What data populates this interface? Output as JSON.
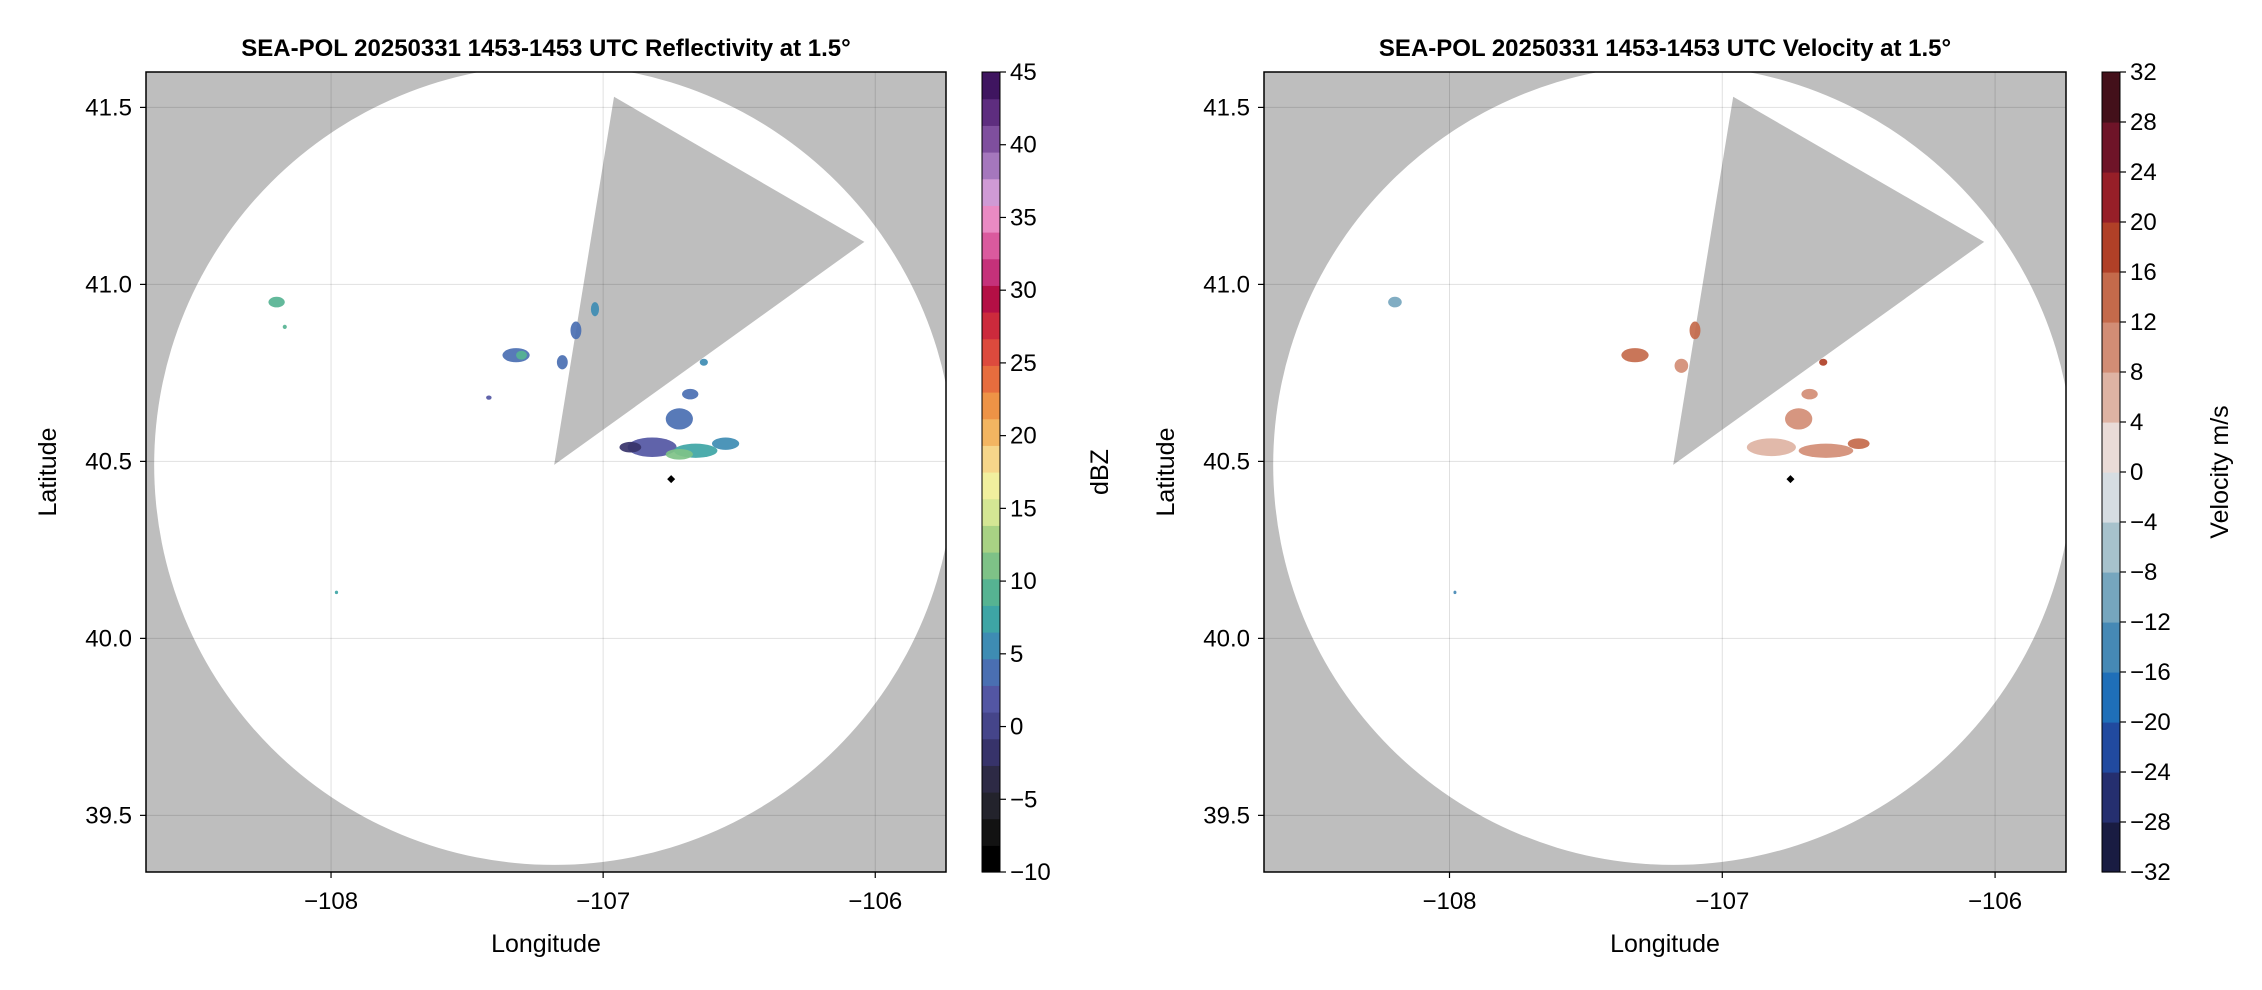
{
  "chart_data": [
    {
      "type": "heatmap",
      "title": "SEA-POL 20250331 1453-1453 UTC Reflectivity at 1.5°",
      "xlabel": "Longitude",
      "ylabel": "Latitude",
      "xlim": [
        -108.68,
        -105.74
      ],
      "ylim": [
        39.34,
        41.6
      ],
      "xticks": [
        -108,
        -107,
        -106
      ],
      "xtick_labels": [
        "−108",
        "−107",
        "−106"
      ],
      "yticks": [
        39.5,
        40.0,
        40.5,
        41.0,
        41.5
      ],
      "ytick_labels": [
        "39.5",
        "40.0",
        "40.5",
        "41.0",
        "41.5"
      ],
      "grid": true,
      "background_color": "#bebebe",
      "coverage_color": "#ffffff",
      "radar_site": {
        "lon": -106.75,
        "lat": 40.45
      },
      "coverage_center": {
        "lon": -107.18,
        "lat": 40.49
      },
      "coverage_radius_lat": 1.13,
      "blocked_sector_vertices": [
        [
          -107.18,
          40.49
        ],
        [
          -106.96,
          41.53
        ],
        [
          -106.04,
          41.12
        ]
      ],
      "colorbar": {
        "label": "dBZ",
        "min": -10,
        "max": 45,
        "step": 2.5,
        "ticks": [
          -10,
          -5,
          0,
          5,
          10,
          15,
          20,
          25,
          30,
          35,
          40,
          45
        ],
        "tick_labels": [
          "−10",
          "−5",
          "0",
          "5",
          "10",
          "15",
          "20",
          "25",
          "30",
          "35",
          "40",
          "45"
        ],
        "colors": [
          "#000000",
          "#121212",
          "#23232c",
          "#2d2a45",
          "#37336a",
          "#45458a",
          "#5356a3",
          "#4a6fb2",
          "#3e8cb3",
          "#3ea5a5",
          "#56b392",
          "#7ec287",
          "#a8d284",
          "#d4e694",
          "#f1ef9e",
          "#f6d68a",
          "#f3b561",
          "#ee9346",
          "#e76d3e",
          "#dd4a3d",
          "#cc2a3c",
          "#b40f45",
          "#c5317a",
          "#da5a9e",
          "#e98ac3",
          "#cf9ad5",
          "#a577bd",
          "#7f4f9e",
          "#5e2d7f",
          "#3f1560"
        ]
      },
      "echoes": [
        {
          "lon": -106.82,
          "lat": 40.54,
          "dlon": 0.18,
          "dlat": 0.055,
          "value": 6
        },
        {
          "lon": -106.66,
          "lat": 40.53,
          "dlon": 0.16,
          "dlat": 0.04,
          "value": 14
        },
        {
          "lon": -106.72,
          "lat": 40.52,
          "dlon": 0.1,
          "dlat": 0.03,
          "value": 18
        },
        {
          "lon": -106.55,
          "lat": 40.55,
          "dlon": 0.1,
          "dlat": 0.035,
          "value": 11
        },
        {
          "lon": -106.9,
          "lat": 40.54,
          "dlon": 0.08,
          "dlat": 0.03,
          "value": 2
        },
        {
          "lon": -106.72,
          "lat": 40.62,
          "dlon": 0.1,
          "dlat": 0.06,
          "value": 8
        },
        {
          "lon": -106.68,
          "lat": 40.69,
          "dlon": 0.06,
          "dlat": 0.03,
          "value": 9
        },
        {
          "lon": -106.63,
          "lat": 40.78,
          "dlon": 0.03,
          "dlat": 0.02,
          "value": 12
        },
        {
          "lon": -107.32,
          "lat": 40.8,
          "dlon": 0.1,
          "dlat": 0.04,
          "value": 9
        },
        {
          "lon": -107.3,
          "lat": 40.8,
          "dlon": 0.04,
          "dlat": 0.025,
          "value": 16
        },
        {
          "lon": -107.1,
          "lat": 40.87,
          "dlon": 0.04,
          "dlat": 0.05,
          "value": 9
        },
        {
          "lon": -107.03,
          "lat": 40.93,
          "dlon": 0.03,
          "dlat": 0.04,
          "value": 10
        },
        {
          "lon": -107.15,
          "lat": 40.78,
          "dlon": 0.04,
          "dlat": 0.04,
          "value": 8
        },
        {
          "lon": -108.2,
          "lat": 40.95,
          "dlon": 0.06,
          "dlat": 0.03,
          "value": 15
        },
        {
          "lon": -108.17,
          "lat": 40.88,
          "dlon": 0.015,
          "dlat": 0.012,
          "value": 15
        },
        {
          "lon": -107.42,
          "lat": 40.68,
          "dlon": 0.02,
          "dlat": 0.012,
          "value": 5
        },
        {
          "lon": -107.98,
          "lat": 40.13,
          "dlon": 0.012,
          "dlat": 0.01,
          "value": 13
        }
      ]
    },
    {
      "type": "heatmap",
      "title": "SEA-POL 20250331 1453-1453 UTC Velocity at 1.5°",
      "xlabel": "Longitude",
      "ylabel": "Latitude",
      "xlim": [
        -108.68,
        -105.74
      ],
      "ylim": [
        39.34,
        41.6
      ],
      "xticks": [
        -108,
        -107,
        -106
      ],
      "xtick_labels": [
        "−108",
        "−107",
        "−106"
      ],
      "yticks": [
        39.5,
        40.0,
        40.5,
        41.0,
        41.5
      ],
      "ytick_labels": [
        "39.5",
        "40.0",
        "40.5",
        "41.0",
        "41.5"
      ],
      "grid": true,
      "background_color": "#bebebe",
      "coverage_color": "#ffffff",
      "radar_site": {
        "lon": -106.75,
        "lat": 40.45
      },
      "coverage_center": {
        "lon": -107.18,
        "lat": 40.49
      },
      "coverage_radius_lat": 1.13,
      "blocked_sector_vertices": [
        [
          -107.18,
          40.49
        ],
        [
          -106.96,
          41.53
        ],
        [
          -106.04,
          41.12
        ]
      ],
      "colorbar": {
        "label": "Velocity m/s",
        "min": -32,
        "max": 32,
        "step": 4,
        "ticks": [
          -32,
          -28,
          -24,
          -20,
          -16,
          -12,
          -8,
          -4,
          0,
          4,
          8,
          12,
          16,
          20,
          24,
          28,
          32
        ],
        "tick_labels": [
          "−32",
          "−28",
          "−24",
          "−20",
          "−16",
          "−12",
          "−8",
          "−4",
          "0",
          "4",
          "8",
          "12",
          "16",
          "20",
          "24",
          "28",
          "32"
        ],
        "colors": [
          "#191c42",
          "#252f6f",
          "#214a9f",
          "#1f6fb8",
          "#4689b5",
          "#76a6be",
          "#a7c2cc",
          "#d6dde2",
          "#e9dbd7",
          "#deb3a3",
          "#d28d75",
          "#c46a4b",
          "#b04027",
          "#961f28",
          "#6e1428",
          "#43101a"
        ]
      },
      "echoes": [
        {
          "lon": -106.82,
          "lat": 40.54,
          "dlon": 0.18,
          "dlat": 0.05,
          "value": 4
        },
        {
          "lon": -106.62,
          "lat": 40.53,
          "dlon": 0.2,
          "dlat": 0.04,
          "value": 10
        },
        {
          "lon": -106.5,
          "lat": 40.55,
          "dlon": 0.08,
          "dlat": 0.03,
          "value": 14
        },
        {
          "lon": -106.72,
          "lat": 40.62,
          "dlon": 0.1,
          "dlat": 0.06,
          "value": 9
        },
        {
          "lon": -106.68,
          "lat": 40.69,
          "dlon": 0.06,
          "dlat": 0.03,
          "value": 10
        },
        {
          "lon": -106.63,
          "lat": 40.78,
          "dlon": 0.03,
          "dlat": 0.02,
          "value": 18
        },
        {
          "lon": -107.32,
          "lat": 40.8,
          "dlon": 0.1,
          "dlat": 0.04,
          "value": 12
        },
        {
          "lon": -107.1,
          "lat": 40.87,
          "dlon": 0.04,
          "dlat": 0.05,
          "value": 12
        },
        {
          "lon": -107.15,
          "lat": 40.77,
          "dlon": 0.05,
          "dlat": 0.04,
          "value": 11
        },
        {
          "lon": -108.2,
          "lat": 40.95,
          "dlon": 0.05,
          "dlat": 0.03,
          "value": -10
        },
        {
          "lon": -107.98,
          "lat": 40.13,
          "dlon": 0.01,
          "dlat": 0.01,
          "value": -14
        }
      ]
    }
  ]
}
